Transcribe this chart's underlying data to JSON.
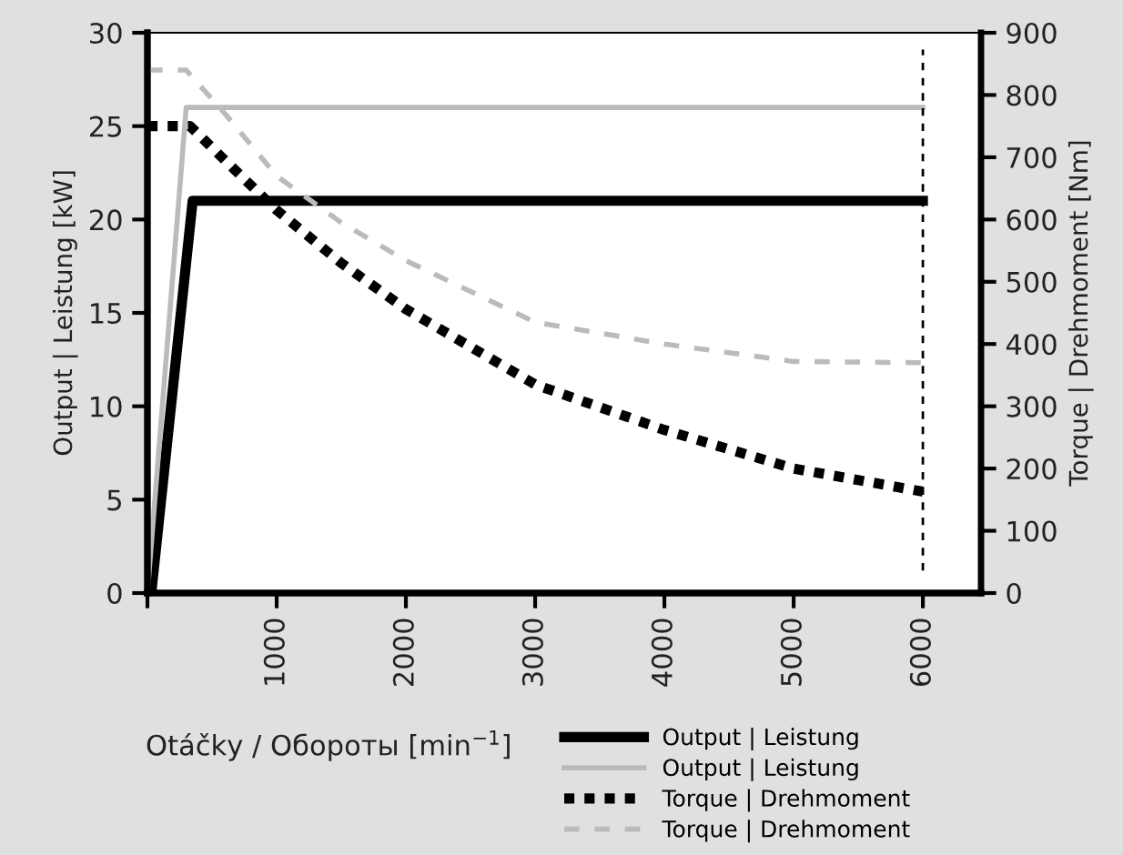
{
  "chart_data": {
    "type": "line",
    "xlabel": "Otáčky / Обороты [min$^{−1}$]",
    "ylabel": "Output | Leistung [kW]",
    "y2label": "Torque | Drehmoment [Nm]",
    "xlim": [
      0,
      6450
    ],
    "xticks": [
      {
        "value": 0,
        "label": null
      },
      1000,
      2000,
      3000,
      4000,
      5000,
      6000
    ],
    "ylim": [
      0,
      30
    ],
    "yticks": [
      0,
      5,
      10,
      15,
      20,
      25,
      30
    ],
    "y2lim": [
      0,
      900
    ],
    "y2ticks": [
      0,
      100,
      200,
      300,
      400,
      500,
      600,
      700,
      800,
      900
    ],
    "grid": false,
    "legend": "bottom",
    "marker": "none",
    "ref_lines": [
      {
        "axis": "x",
        "value": 6000,
        "color": "#000000",
        "line_style": "dashed"
      }
    ],
    "series": [
      {
        "name": "Output | Leistung",
        "color": "#000000",
        "line_style": "solid",
        "x": [
          30,
          350,
          6000
        ],
        "values": [
          0,
          21,
          21
        ]
      },
      {
        "name": "Output | Leistung",
        "color": "#bbbbbb",
        "line_style": "solid",
        "x": [
          0,
          300,
          6000
        ],
        "values": [
          0,
          26,
          26
        ]
      },
      {
        "name": "Torque | Drehmoment",
        "color": "#000000",
        "line_style": "dotted",
        "axis": "y2",
        "x": [
          0,
          330,
          600,
          1000,
          1500,
          2000,
          3000,
          4000,
          5000,
          6000
        ],
        "values": [
          750,
          750,
          695,
          615,
          530,
          456,
          335,
          262,
          200,
          163
        ]
      },
      {
        "name": "Torque | Drehmoment",
        "color": "#bbbbbb",
        "line_style": "dashed",
        "axis": "y2",
        "x": [
          0,
          300,
          600,
          1000,
          1500,
          2000,
          3000,
          4000,
          5000,
          6000
        ],
        "values": [
          840,
          840,
          770,
          670,
          595,
          534,
          435,
          400,
          372,
          370
        ]
      }
    ]
  }
}
